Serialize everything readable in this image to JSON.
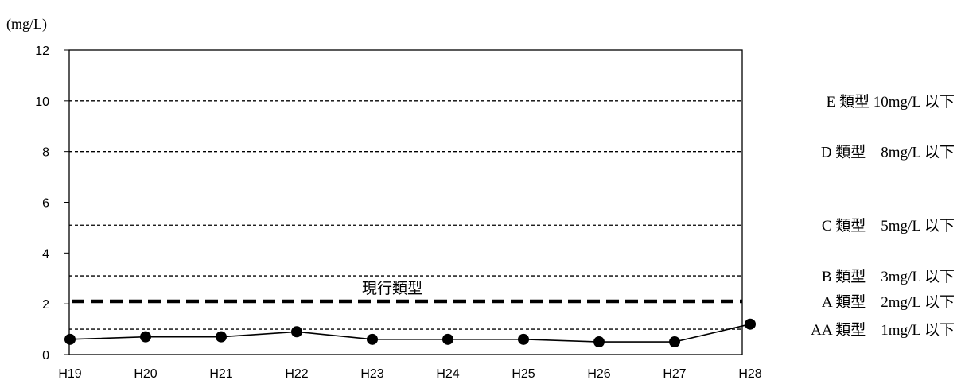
{
  "chart_data": {
    "type": "line",
    "unit_label": "(mg/L)",
    "categories": [
      "H19",
      "H20",
      "H21",
      "H22",
      "H23",
      "H24",
      "H25",
      "H26",
      "H27",
      "H28"
    ],
    "series": [
      {
        "values": [
          0.6,
          0.7,
          0.7,
          0.9,
          0.6,
          0.6,
          0.6,
          0.5,
          0.5,
          1.2
        ]
      }
    ],
    "ylim": [
      0,
      12
    ],
    "yticks": [
      0,
      2,
      4,
      6,
      8,
      10,
      12
    ],
    "reference_lines": [
      {
        "value": 10,
        "style": "thin-dashed",
        "label": "E 類型 10mg/L 以下"
      },
      {
        "value": 8,
        "style": "thin-dashed",
        "label": "D 類型　8mg/L 以下"
      },
      {
        "value": 5.1,
        "style": "thin-dashed",
        "label": "C 類型　5mg/L 以下"
      },
      {
        "value": 3.1,
        "style": "thin-dashed",
        "label": "B 類型　3mg/L 以下"
      },
      {
        "value": 2.1,
        "style": "bold-dashed",
        "label": "A 類型　2mg/L 以下"
      },
      {
        "value": 1,
        "style": "thin-dashed",
        "label": "AA 類型　1mg/L 以下"
      }
    ],
    "current_class_label": "現行類型",
    "grid": false,
    "line_color": "#000000",
    "marker_color": "#000000"
  }
}
